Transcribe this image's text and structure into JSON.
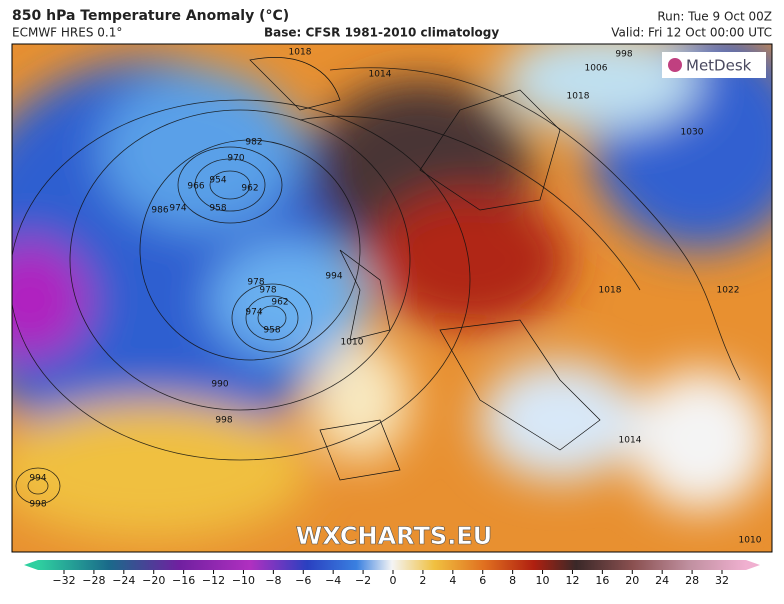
{
  "header": {
    "title": "850 hPa Temperature Anomaly (°C)",
    "model": "ECMWF HRES 0.1°",
    "base": "Base: CFSR 1981-2010 climatology",
    "run": "Run: Tue 9 Oct 00Z",
    "valid": "Valid: Fri 12 Oct 00:00 UTC"
  },
  "logo": "MetDesk",
  "watermark": "WXCHARTS.EU",
  "isobar_labels": [
    "998",
    "1006",
    "1014",
    "1018",
    "1018",
    "970",
    "982",
    "954",
    "962",
    "958",
    "966",
    "974",
    "978",
    "994",
    "986",
    "978",
    "974",
    "962",
    "958",
    "1010",
    "990",
    "998",
    "1030",
    "1022",
    "1018",
    "1014",
    "1010",
    "994",
    "998"
  ],
  "colorbar": {
    "ticks": [
      {
        "value": -32,
        "label": "−32"
      },
      {
        "value": -28,
        "label": "−28"
      },
      {
        "value": -24,
        "label": "−24"
      },
      {
        "value": -20,
        "label": "−20"
      },
      {
        "value": -16,
        "label": "−16"
      },
      {
        "value": -12,
        "label": "−12"
      },
      {
        "value": -10,
        "label": "−10"
      },
      {
        "value": -8,
        "label": "−8"
      },
      {
        "value": -6,
        "label": "−6"
      },
      {
        "value": -4,
        "label": "−4"
      },
      {
        "value": -2,
        "label": "−2"
      },
      0,
      2,
      4,
      6,
      8,
      10,
      12,
      16,
      20,
      24,
      28,
      32
    ]
  }
}
